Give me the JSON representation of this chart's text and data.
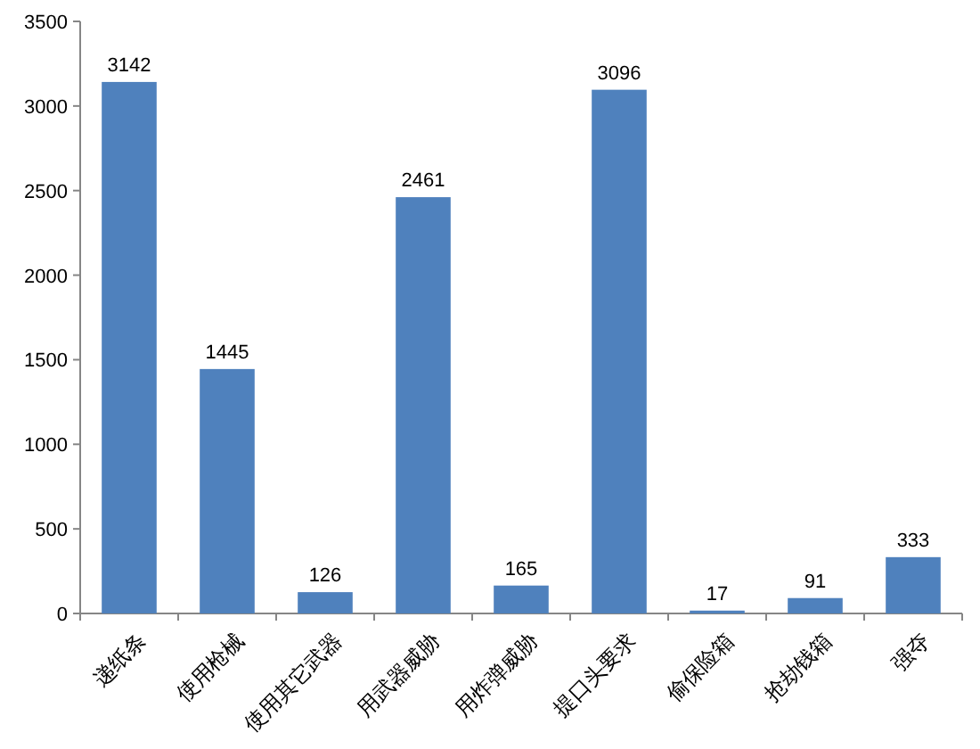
{
  "chart_data": {
    "type": "bar",
    "categories": [
      "递纸条",
      "使用枪械",
      "使用其它武器",
      "用武器威胁",
      "用炸弹威胁",
      "提口头要求",
      "偷保险箱",
      "抢劫钱箱",
      "强夺"
    ],
    "values": [
      3142,
      1445,
      126,
      2461,
      165,
      3096,
      17,
      91,
      333
    ],
    "color": "#4f81bd",
    "ylim": [
      0,
      3500
    ],
    "yticks": [
      0,
      500,
      1000,
      1500,
      2000,
      2500,
      3000,
      3500
    ],
    "data_labels": true
  }
}
